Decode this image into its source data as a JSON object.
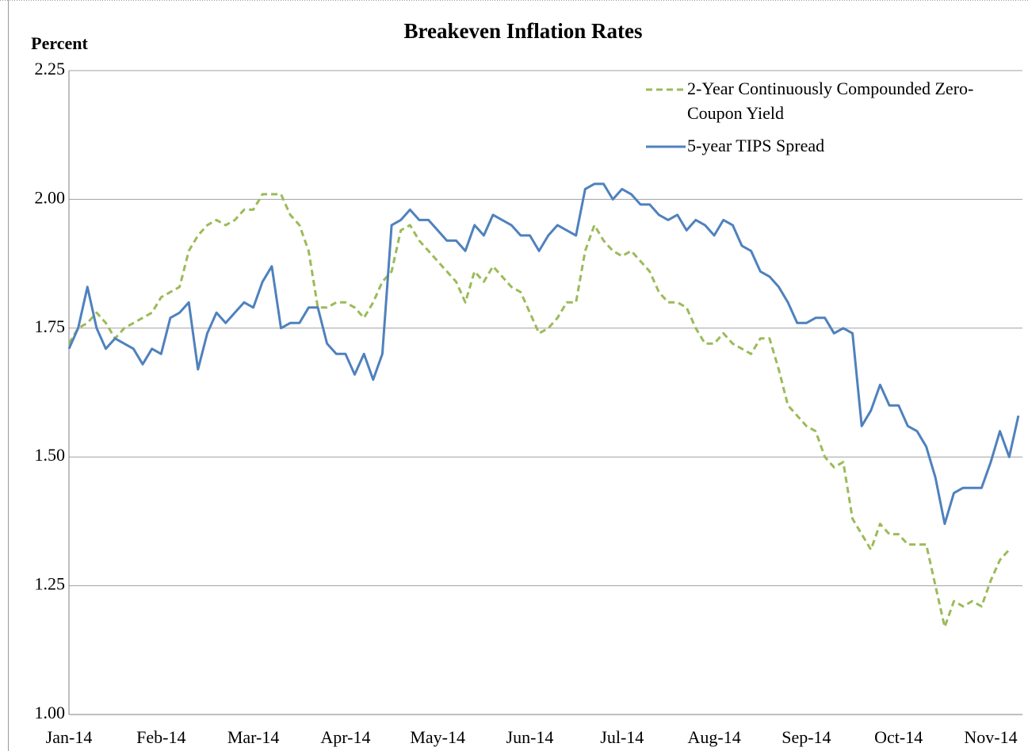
{
  "chart_data": {
    "type": "line",
    "title": "Breakeven Inflation Rates",
    "y_label": "Percent",
    "categories": [
      "Jan-14",
      null,
      null,
      null,
      null,
      null,
      null,
      null,
      null,
      null,
      "Feb-14",
      null,
      null,
      null,
      null,
      null,
      null,
      null,
      null,
      null,
      "Mar-14",
      null,
      null,
      null,
      null,
      null,
      null,
      null,
      null,
      null,
      "Apr-14",
      null,
      null,
      null,
      null,
      null,
      null,
      null,
      null,
      null,
      "May-14",
      null,
      null,
      null,
      null,
      null,
      null,
      null,
      null,
      null,
      "Jun-14",
      null,
      null,
      null,
      null,
      null,
      null,
      null,
      null,
      null,
      "Jul-14",
      null,
      null,
      null,
      null,
      null,
      null,
      null,
      null,
      null,
      "Aug-14",
      null,
      null,
      null,
      null,
      null,
      null,
      null,
      null,
      null,
      "Sep-14",
      null,
      null,
      null,
      null,
      null,
      null,
      null,
      null,
      null,
      "Oct-14",
      null,
      null,
      null,
      null,
      null,
      null,
      null,
      null,
      null,
      "Nov-14",
      null,
      null,
      null
    ],
    "series": [
      {
        "name": "2-Year Continuously Compounded Zero-Coupon Yield",
        "color": "#9bbb59",
        "dash": true,
        "values": [
          1.72,
          1.75,
          1.76,
          1.78,
          1.76,
          1.73,
          1.75,
          1.76,
          1.77,
          1.78,
          1.81,
          1.82,
          1.83,
          1.9,
          1.93,
          1.95,
          1.96,
          1.95,
          1.96,
          1.98,
          1.98,
          2.01,
          2.01,
          2.01,
          1.97,
          1.95,
          1.9,
          1.79,
          1.79,
          1.8,
          1.8,
          1.79,
          1.77,
          1.8,
          1.84,
          1.86,
          1.94,
          1.95,
          1.92,
          1.9,
          1.88,
          1.86,
          1.84,
          1.8,
          1.86,
          1.84,
          1.87,
          1.85,
          1.83,
          1.82,
          1.78,
          1.74,
          1.75,
          1.77,
          1.8,
          1.8,
          1.9,
          1.95,
          1.92,
          1.9,
          1.89,
          1.9,
          1.88,
          1.86,
          1.82,
          1.8,
          1.8,
          1.79,
          1.75,
          1.72,
          1.72,
          1.74,
          1.72,
          1.71,
          1.7,
          1.73,
          1.73,
          1.67,
          1.6,
          1.58,
          1.56,
          1.55,
          1.5,
          1.48,
          1.49,
          1.38,
          1.35,
          1.32,
          1.37,
          1.35,
          1.35,
          1.33,
          1.33,
          1.33,
          1.25,
          1.17,
          1.22,
          1.21,
          1.22,
          1.21,
          1.26,
          1.3,
          1.32,
          null
        ]
      },
      {
        "name": "5-year TIPS Spread",
        "color": "#4f81bd",
        "dash": false,
        "values": [
          1.71,
          1.75,
          1.83,
          1.75,
          1.71,
          1.73,
          1.72,
          1.71,
          1.68,
          1.71,
          1.7,
          1.77,
          1.78,
          1.8,
          1.67,
          1.74,
          1.78,
          1.76,
          1.78,
          1.8,
          1.79,
          1.84,
          1.87,
          1.75,
          1.76,
          1.76,
          1.79,
          1.79,
          1.72,
          1.7,
          1.7,
          1.66,
          1.7,
          1.65,
          1.7,
          1.95,
          1.96,
          1.98,
          1.96,
          1.96,
          1.94,
          1.92,
          1.92,
          1.9,
          1.95,
          1.93,
          1.97,
          1.96,
          1.95,
          1.93,
          1.93,
          1.9,
          1.93,
          1.95,
          1.94,
          1.93,
          2.02,
          2.03,
          2.03,
          2.0,
          2.02,
          2.01,
          1.99,
          1.99,
          1.97,
          1.96,
          1.97,
          1.94,
          1.96,
          1.95,
          1.93,
          1.96,
          1.95,
          1.91,
          1.9,
          1.86,
          1.85,
          1.83,
          1.8,
          1.76,
          1.76,
          1.77,
          1.77,
          1.74,
          1.75,
          1.74,
          1.56,
          1.59,
          1.64,
          1.6,
          1.6,
          1.56,
          1.55,
          1.52,
          1.46,
          1.37,
          1.43,
          1.44,
          1.44,
          1.44,
          1.49,
          1.55,
          1.5,
          1.58
        ]
      }
    ],
    "ylim": [
      1.0,
      2.25
    ],
    "yticks": [
      {
        "value": 1,
        "label": "1.00"
      },
      {
        "value": 1.25,
        "label": "1.25"
      },
      {
        "value": 1.5,
        "label": "1.50"
      },
      {
        "value": 1.75,
        "label": "1.75"
      },
      {
        "value": 2,
        "label": "2.00"
      },
      {
        "value": 2.25,
        "label": "2.25"
      }
    ],
    "grid": true,
    "legend": "top-right"
  }
}
